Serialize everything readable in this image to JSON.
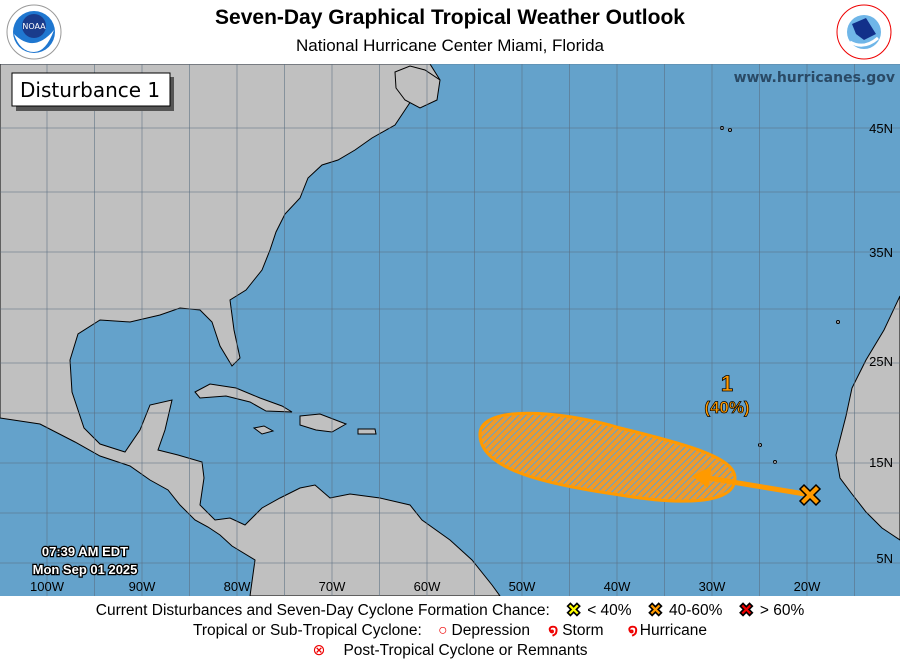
{
  "header": {
    "title": "Seven-Day Graphical Tropical Weather Outlook",
    "subtitle": "National Hurricane Center  Miami, Florida",
    "left_logo": "noaa-logo",
    "right_logo": "national-weather-service-logo"
  },
  "map": {
    "panel_label": "Disturbance 1",
    "website": "www.hurricanes.gov",
    "timestamp_time": "07:39 AM EDT",
    "timestamp_date": "Mon Sep 01 2025",
    "longitude_labels": [
      "100W",
      "90W",
      "80W",
      "70W",
      "60W",
      "50W",
      "40W",
      "30W",
      "20W"
    ],
    "latitude_labels": [
      "45N",
      "35N",
      "25N",
      "15N",
      "5N"
    ],
    "colors": {
      "ocean": "#64a2cb",
      "land": "#c0c0c0",
      "area_orange": "#ff9a00"
    },
    "disturbances": [
      {
        "number": "1",
        "chance": "(40%)",
        "category": "40-60%",
        "marker": "x-icon-orange",
        "motion": "west-northwest"
      }
    ]
  },
  "legend": {
    "row1_label": "Current Disturbances and Seven-Day Cyclone Formation Chance:",
    "low": "< 40%",
    "medium": "40-60%",
    "high": "> 60%",
    "colors": {
      "low": "#ffff00",
      "medium": "#ff9a00",
      "high": "#ee0000"
    },
    "row2_label": "Tropical or Sub-Tropical Cyclone:",
    "depression": "Depression",
    "storm": "Storm",
    "hurricane": "Hurricane",
    "post_tropical": "Post-Tropical Cyclone or Remnants"
  }
}
